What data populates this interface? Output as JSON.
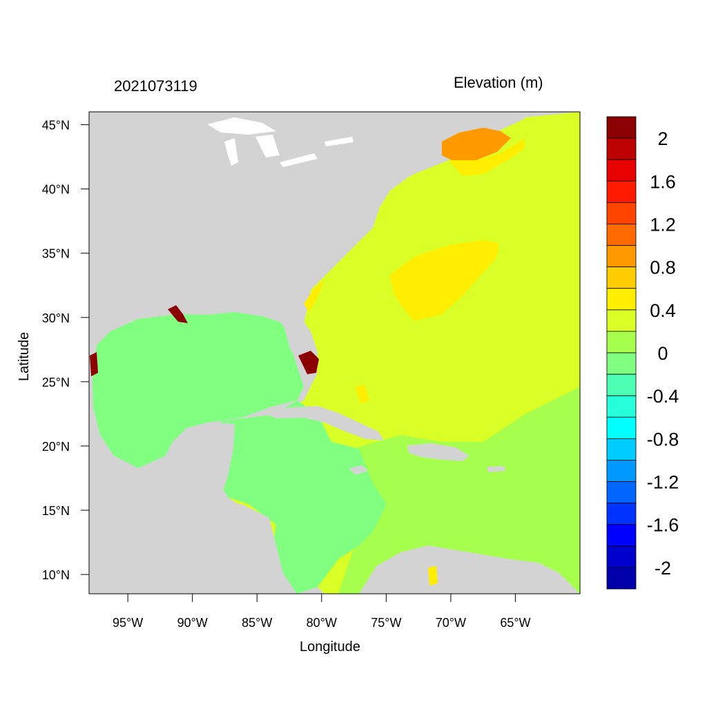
{
  "header": {
    "date": "2021073119",
    "units": "Elevation (m)"
  },
  "axes": {
    "xlabel": "Longitude",
    "ylabel": "Latitude",
    "lon_range": [
      -98,
      -60
    ],
    "lat_range": [
      8.5,
      46
    ],
    "x_ticks": [
      {
        "value": -95,
        "label": "95°W"
      },
      {
        "value": -90,
        "label": "90°W"
      },
      {
        "value": -85,
        "label": "85°W"
      },
      {
        "value": -80,
        "label": "80°W"
      },
      {
        "value": -75,
        "label": "75°W"
      },
      {
        "value": -70,
        "label": "70°W"
      },
      {
        "value": -65,
        "label": "65°W"
      }
    ],
    "y_ticks": [
      {
        "value": 45,
        "label": "45°N"
      },
      {
        "value": 40,
        "label": "40°N"
      },
      {
        "value": 35,
        "label": "35°N"
      },
      {
        "value": 30,
        "label": "30°N"
      },
      {
        "value": 25,
        "label": "25°N"
      },
      {
        "value": 20,
        "label": "20°N"
      },
      {
        "value": 15,
        "label": "15°N"
      },
      {
        "value": 10,
        "label": "10°N"
      }
    ]
  },
  "colorbar": {
    "colors_top_to_bottom": [
      "#8b0000",
      "#bd0000",
      "#e60000",
      "#ff1a00",
      "#ff4400",
      "#ff6a00",
      "#ff9900",
      "#ffcc00",
      "#ffee00",
      "#d9ff26",
      "#a6ff4d",
      "#80ff80",
      "#4dffb3",
      "#26ffd9",
      "#00ffff",
      "#00ccff",
      "#0099ff",
      "#0066ff",
      "#0033ff",
      "#0000ff",
      "#0000cc",
      "#0000aa"
    ],
    "labels": [
      "2",
      "1.6",
      "1.2",
      "0.8",
      "0.4",
      "0",
      "-0.4",
      "-0.8",
      "-1.2",
      "-1.6",
      "-2"
    ]
  },
  "map_colors": {
    "land": "#d3d3d3",
    "lake": "#ffffff",
    "ocean_main": "#d9ff26",
    "caribbean_east": "#a6ff4d",
    "gulf": "#80ff80",
    "high_band": "#ffee00",
    "gulf_of_maine": "#ff9900",
    "extreme": "#8b0000"
  }
}
